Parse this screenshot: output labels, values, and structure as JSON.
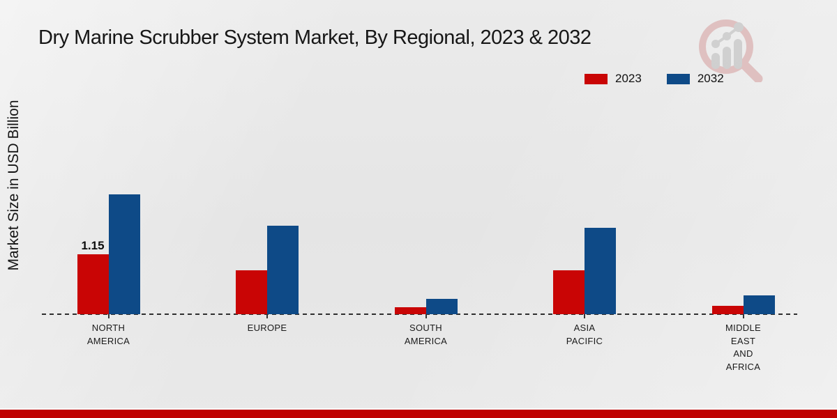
{
  "header": {
    "title": "Dry Marine Scrubber System Market, By Regional, 2023 & 2032"
  },
  "legend": {
    "items": [
      {
        "label": "2023",
        "color": "#c90505"
      },
      {
        "label": "2032",
        "color": "#0e4a87"
      }
    ]
  },
  "icons": {
    "logo": "magnifier-bar-chart-logo"
  },
  "colors": {
    "accent_red": "#c90505",
    "accent_blue": "#0e4a87",
    "footer_red": "#bf0303",
    "background": "#e8e8e8"
  },
  "chart_data": {
    "type": "bar",
    "title": "Dry Marine Scrubber System Market, By Regional, 2023 & 2032",
    "xlabel": "",
    "ylabel": "Market Size in USD Billion",
    "categories": [
      [
        "NORTH",
        "AMERICA"
      ],
      [
        "EUROPE"
      ],
      [
        "SOUTH",
        "AMERICA"
      ],
      [
        "ASIA",
        "PACIFIC"
      ],
      [
        "MIDDLE",
        "EAST",
        "AND",
        "AFRICA"
      ]
    ],
    "series": [
      {
        "name": "2023",
        "color": "#c90505",
        "values": [
          1.15,
          0.84,
          0.14,
          0.84,
          0.16
        ]
      },
      {
        "name": "2032",
        "color": "#0e4a87",
        "values": [
          2.3,
          1.69,
          0.29,
          1.65,
          0.36
        ]
      }
    ],
    "data_labels": [
      {
        "series_index": 0,
        "category_index": 0,
        "text": "1.15"
      }
    ],
    "ylim": [
      0,
      3
    ],
    "grid": false,
    "legend_position": "top-right",
    "baseline_style": "dashed"
  }
}
